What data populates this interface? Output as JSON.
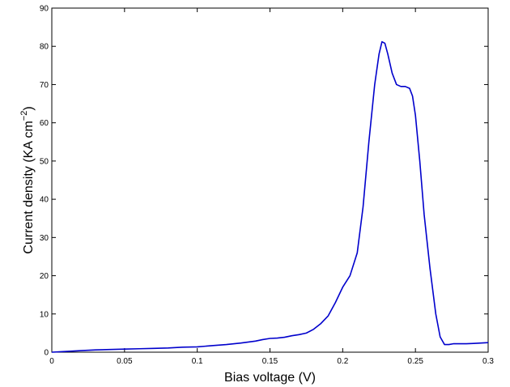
{
  "chart_data": {
    "type": "line",
    "title": "",
    "xlabel": "Bias voltage (V)",
    "ylabel_main": "Current density (KA cm",
    "ylabel_sup": "−2",
    "ylabel_close": ")",
    "xlim": [
      0,
      0.3
    ],
    "ylim": [
      0,
      90
    ],
    "grid": false,
    "xticks": [
      0,
      0.05,
      0.1,
      0.15,
      0.2,
      0.25,
      0.3
    ],
    "xtick_labels": [
      "0",
      "0.05",
      "0.1",
      "0.15",
      "0.2",
      "0.25",
      "0.3"
    ],
    "yticks": [
      0,
      10,
      20,
      30,
      40,
      50,
      60,
      70,
      80,
      90
    ],
    "ytick_labels": [
      "0",
      "10",
      "20",
      "30",
      "40",
      "50",
      "60",
      "70",
      "80",
      "90"
    ],
    "line_color": "#0000cc",
    "series": [
      {
        "x": [
          0,
          0.01,
          0.02,
          0.03,
          0.04,
          0.05,
          0.06,
          0.07,
          0.08,
          0.09,
          0.1,
          0.11,
          0.12,
          0.13,
          0.14,
          0.145,
          0.15,
          0.155,
          0.16,
          0.165,
          0.17,
          0.175,
          0.18,
          0.185,
          0.19,
          0.195,
          0.2,
          0.205,
          0.21,
          0.214,
          0.218,
          0.222,
          0.225,
          0.227,
          0.229,
          0.231,
          0.234,
          0.237,
          0.24,
          0.243,
          0.246,
          0.248,
          0.25,
          0.253,
          0.256,
          0.26,
          0.264,
          0.267,
          0.27,
          0.273,
          0.276,
          0.28,
          0.285,
          0.29,
          0.295,
          0.3
        ],
        "y": [
          0,
          0.2,
          0.4,
          0.6,
          0.7,
          0.8,
          0.9,
          1.0,
          1.1,
          1.3,
          1.4,
          1.7,
          2.0,
          2.4,
          2.9,
          3.3,
          3.6,
          3.7,
          3.9,
          4.3,
          4.6,
          5.0,
          6.0,
          7.5,
          9.5,
          13.0,
          17.0,
          20.0,
          26.0,
          38.0,
          55.0,
          70.0,
          78.0,
          81.2,
          80.8,
          78.0,
          73.0,
          70.0,
          69.5,
          69.5,
          69.0,
          67.0,
          62.0,
          50.0,
          36.0,
          22.0,
          10.0,
          4.0,
          2.0,
          2.0,
          2.2,
          2.2,
          2.2,
          2.3,
          2.4,
          2.5
        ]
      }
    ]
  }
}
